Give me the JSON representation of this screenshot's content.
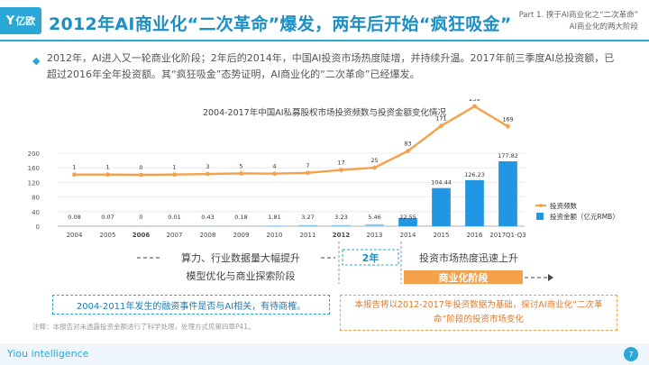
{
  "header": {
    "logo_text": "亿欧",
    "title": "2012年AI商业化“二次革命”爆发，两年后开始“疯狂吸金”",
    "part_line1": "Part 1. 揆于AI商业化之“二次革命”",
    "part_line2": "AI商业化的两大阶段"
  },
  "intro": "2012年，AI进入又一轮商业化阶段；2年后的2014年，中国AI投资市场热度陡增，并持续升温。2017年前三季度AI总投资额，已超过2016年全年投资额。其“疯狂吸金”态势证明，AI商业化的“二次革命”已经爆发。",
  "colors": {
    "accent": "#2aa7d6",
    "orange": "#f5a04a",
    "bar": "#2196e3",
    "bar_light": "#8cc8ee"
  },
  "chart_data": {
    "type": "bar+line",
    "title": "2004-2017年中国AI私募股权市场投资频数与投资金额变化情况",
    "categories": [
      "2004",
      "2005",
      "2006",
      "2007",
      "2008",
      "2009",
      "2010",
      "2011",
      "2012",
      "2013",
      "2014",
      "2015",
      "2016",
      "2017Q1-Q3"
    ],
    "bold_categories": [
      "2006",
      "2012"
    ],
    "ylim": [
      0,
      200
    ],
    "yticks": [
      0,
      40,
      80,
      120,
      160,
      200
    ],
    "series": [
      {
        "name": "投资频数",
        "type": "line",
        "values": [
          1,
          1,
          0,
          1,
          3,
          5,
          4,
          7,
          17,
          25,
          83,
          171,
          239,
          169
        ]
      },
      {
        "name": "投资金额（亿元RMB）",
        "type": "bar",
        "values": [
          0.08,
          0.07,
          0,
          0.01,
          0.43,
          0.18,
          1.81,
          3.27,
          3.23,
          5.46,
          22.55,
          104.44,
          126.23,
          177.82
        ]
      }
    ],
    "legend_position": "right"
  },
  "phases": {
    "left_top": "算力、行业数据量大幅提升",
    "left_bottom": "模型优化与商业探索阶段",
    "mid": "2年",
    "right_top": "投资市场热度迅速上升",
    "right_bottom": "商业化阶段"
  },
  "notes": {
    "left": "2004-2011年发生的融资事件是否与AI相关，有待商榷。",
    "right": "本报告将以2012-2017年投资数据为基础，探讨AI商业化“二次革命”阶段的投资市场变化",
    "source": "注释：本报告对未透露投资金额进行了科学处理，处理方式见第四章P41。"
  },
  "footer": {
    "brand": "Yiou intelligence",
    "page": "7"
  }
}
